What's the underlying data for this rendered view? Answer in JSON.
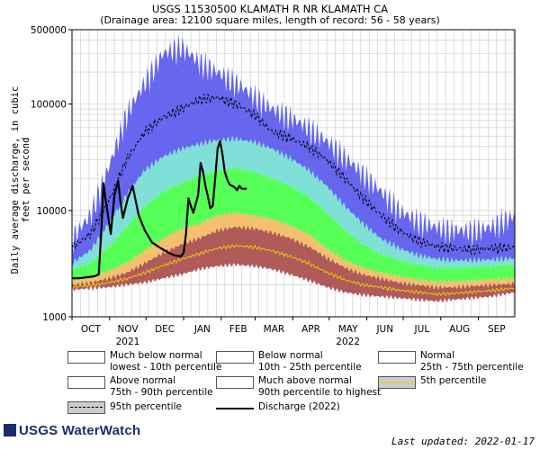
{
  "titles": {
    "main": "USGS 11530500 KLAMATH R NR KLAMATH CA",
    "sub": "(Drainage area: 12100 square miles, length of record: 56 - 58 years)"
  },
  "footer": {
    "logo": "USGS WaterWatch",
    "updated": "Last updated: 2022-01-17"
  },
  "chart_data": {
    "type": "area",
    "ylabel": "Daily average discharge, in cubic feet per second",
    "yscale": "log",
    "ylim": [
      1000,
      500000
    ],
    "y_ticks": [
      {
        "value": 1000,
        "label": "1000"
      },
      {
        "value": 10000,
        "label": "10000"
      },
      {
        "value": 100000,
        "label": "100000"
      },
      {
        "value": 500000,
        "label": "500000"
      }
    ],
    "x_months": [
      "OCT",
      "NOV",
      "DEC",
      "JAN",
      "FEB",
      "MAR",
      "APR",
      "MAY",
      "JUN",
      "JUL",
      "AUG",
      "SEP"
    ],
    "x_years": [
      {
        "label": "2021",
        "under": "NOV"
      },
      {
        "label": "2022",
        "under": "MAY"
      }
    ],
    "xlim_days": [
      0,
      365
    ],
    "percentiles": {
      "day": [
        0,
        15,
        30,
        45,
        60,
        75,
        90,
        105,
        120,
        135,
        150,
        165,
        180,
        195,
        210,
        225,
        240,
        255,
        270,
        285,
        300,
        315,
        330,
        345,
        365
      ],
      "min": [
        1800,
        1850,
        1900,
        2000,
        2100,
        2300,
        2500,
        2800,
        3000,
        3100,
        3000,
        2800,
        2500,
        2200,
        1900,
        1700,
        1600,
        1550,
        1500,
        1450,
        1400,
        1450,
        1500,
        1550,
        1700
      ],
      "p10": [
        2000,
        2100,
        2300,
        2600,
        3200,
        4000,
        4800,
        5500,
        6500,
        7000,
        6800,
        6200,
        5500,
        4600,
        3600,
        2900,
        2500,
        2300,
        2100,
        2000,
        1900,
        1900,
        1950,
        2000,
        2050
      ],
      "p25": [
        2200,
        2350,
        2700,
        3200,
        4200,
        5400,
        6700,
        7500,
        9000,
        9500,
        9000,
        8300,
        7200,
        6000,
        4400,
        3400,
        2900,
        2600,
        2400,
        2250,
        2150,
        2150,
        2200,
        2250,
        2300
      ],
      "p75": [
        2800,
        3200,
        4500,
        7000,
        11000,
        15000,
        18000,
        21000,
        24000,
        25000,
        23000,
        20000,
        17000,
        13500,
        9500,
        6500,
        4800,
        3900,
        3400,
        3100,
        2900,
        2900,
        2950,
        3000,
        3100
      ],
      "p90": [
        3200,
        4200,
        7500,
        14000,
        24000,
        32000,
        38000,
        42000,
        46000,
        47000,
        44000,
        38000,
        31000,
        24000,
        17000,
        11000,
        7500,
        5400,
        4400,
        3800,
        3500,
        3400,
        3400,
        3450,
        3550
      ],
      "p95": [
        4500,
        6000,
        12000,
        30000,
        55000,
        75000,
        90000,
        110000,
        115000,
        100000,
        80000,
        55000,
        48000,
        40000,
        30000,
        20000,
        13000,
        9000,
        6500,
        5200,
        4600,
        4400,
        4300,
        4400,
        4500
      ],
      "max": [
        5500,
        9000,
        25000,
        80000,
        160000,
        300000,
        350000,
        250000,
        200000,
        160000,
        120000,
        90000,
        75000,
        60000,
        45000,
        32000,
        22000,
        15000,
        10000,
        8000,
        7000,
        6500,
        6500,
        7000,
        9000
      ]
    },
    "discharge_2022": {
      "day": [
        0,
        6,
        12,
        18,
        22,
        24,
        26,
        28,
        32,
        35,
        38,
        40,
        42,
        46,
        50,
        55,
        60,
        66,
        72,
        78,
        84,
        90,
        92,
        94,
        96,
        98,
        100,
        102,
        104,
        106,
        108,
        110,
        112,
        114,
        116,
        118,
        120,
        122,
        124,
        126,
        128,
        130,
        132,
        134,
        136,
        138,
        140,
        144
      ],
      "value": [
        2300,
        2300,
        2350,
        2400,
        2500,
        6000,
        18000,
        12000,
        6000,
        14000,
        19000,
        12000,
        8500,
        13000,
        17000,
        9000,
        6500,
        5000,
        4500,
        4100,
        3800,
        3700,
        4000,
        6000,
        13000,
        11000,
        9500,
        11500,
        14000,
        28000,
        23000,
        17000,
        13500,
        10500,
        11000,
        20000,
        38000,
        45000,
        34000,
        23000,
        19500,
        17500,
        17000,
        16500,
        15500,
        17000,
        16000,
        16000
      ]
    },
    "series": [
      {
        "name": "Much below normal",
        "desc": "lowest - 10th percentile",
        "color": "#b05a5a"
      },
      {
        "name": "Below normal",
        "desc": "10th - 25th percentile",
        "color": "#f5c06e"
      },
      {
        "name": "Normal",
        "desc": "25th - 75th percentile",
        "color": "#55ff55"
      },
      {
        "name": "Above normal",
        "desc": "75th - 90th percentile",
        "color": "#7fe0d8"
      },
      {
        "name": "Much above normal",
        "desc": "90th percentile to highest",
        "color": "#6666ee"
      },
      {
        "name": "5th percentile",
        "desc": "",
        "color": "#e8d000"
      },
      {
        "name": "95th percentile",
        "desc": "",
        "color": "#000000"
      },
      {
        "name": "Discharge (2022)",
        "desc": "",
        "color": "#000000"
      }
    ]
  }
}
